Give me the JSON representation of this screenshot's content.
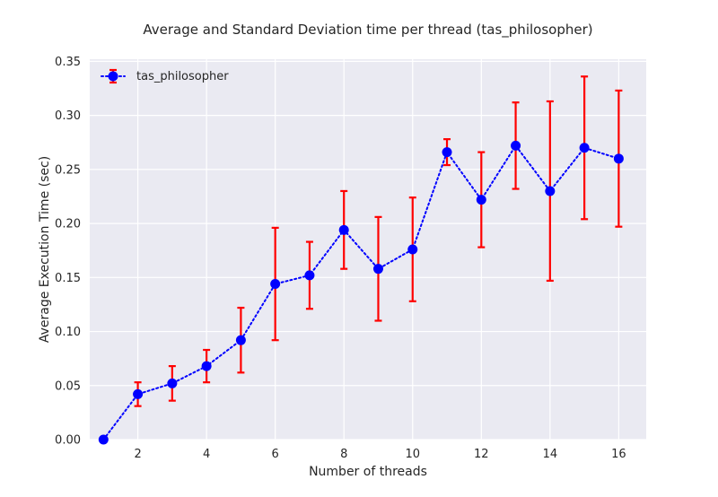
{
  "chart_data": {
    "type": "line",
    "title": "Average and Standard Deviation time per thread (tas_philosopher)",
    "xlabel": "Number of threads",
    "ylabel": "Average Execution Time (sec)",
    "xlim": [
      0.6,
      16.8
    ],
    "ylim": [
      0,
      0.352
    ],
    "xticks": [
      2,
      4,
      6,
      8,
      10,
      12,
      14,
      16
    ],
    "yticks": [
      0.0,
      0.05,
      0.1,
      0.15,
      0.2,
      0.25,
      0.3,
      0.35
    ],
    "ytick_labels": [
      "0.00",
      "0.05",
      "0.10",
      "0.15",
      "0.20",
      "0.25",
      "0.30",
      "0.35"
    ],
    "grid": true,
    "legend_position": "top-left",
    "series": [
      {
        "name": "tas_philosopher",
        "line_color": "#0000ff",
        "line_style": "dotted",
        "marker_color": "#0000ff",
        "error_color": "#ff0000",
        "x": [
          1,
          2,
          3,
          4,
          5,
          6,
          7,
          8,
          9,
          10,
          11,
          12,
          13,
          14,
          15,
          16
        ],
        "y": [
          0.0,
          0.042,
          0.052,
          0.068,
          0.092,
          0.144,
          0.152,
          0.194,
          0.158,
          0.176,
          0.266,
          0.222,
          0.272,
          0.23,
          0.27,
          0.26
        ],
        "error": [
          0.0,
          0.011,
          0.016,
          0.015,
          0.03,
          0.052,
          0.031,
          0.036,
          0.048,
          0.048,
          0.012,
          0.044,
          0.04,
          0.083,
          0.066,
          0.063
        ]
      }
    ]
  },
  "colors": {
    "plot_background": "#eaeaf2",
    "grid": "#ffffff",
    "text": "#262626"
  }
}
